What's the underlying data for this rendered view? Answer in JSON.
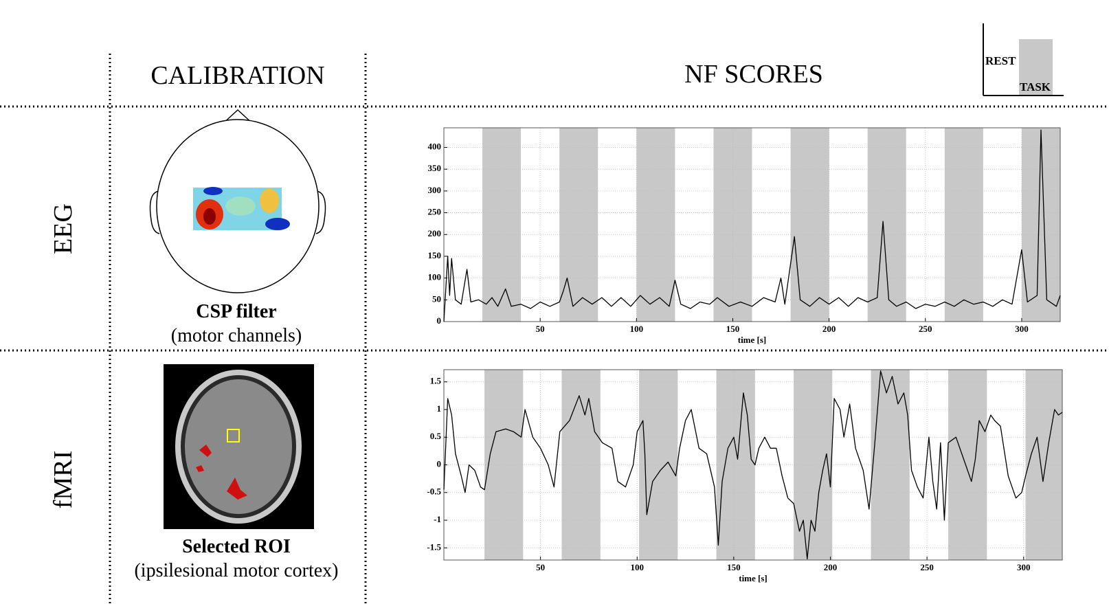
{
  "header": {
    "calibration": "CALIBRATION",
    "nf_scores": "NF SCORES"
  },
  "legend": {
    "rest": "REST",
    "task": "TASK"
  },
  "rows": [
    {
      "label": "EEG",
      "calibration_title": "CSP filter",
      "calibration_subtitle": "(motor channels)"
    },
    {
      "label": "fMRI",
      "calibration_title": "Selected ROI",
      "calibration_subtitle": "(ipsilesional motor cortex)"
    }
  ],
  "chart_data": [
    {
      "type": "line",
      "xlabel": "time [s]",
      "color": "#000000",
      "task_color": "#c8c8c8",
      "grid": true,
      "xlim": [
        0,
        320
      ],
      "ylim": [
        0,
        445
      ],
      "xticks": [
        50,
        100,
        150,
        200,
        250,
        300
      ],
      "yticks": [
        0,
        50,
        100,
        150,
        200,
        250,
        300,
        350,
        400
      ],
      "task_periods": [
        [
          20,
          40
        ],
        [
          60,
          80
        ],
        [
          100,
          120
        ],
        [
          140,
          160
        ],
        [
          180,
          200
        ],
        [
          220,
          240
        ],
        [
          260,
          280
        ],
        [
          300,
          320
        ]
      ],
      "x": [
        0,
        2,
        3,
        4,
        6,
        9,
        12,
        14,
        18,
        22,
        25,
        28,
        32,
        35,
        40,
        45,
        50,
        55,
        60,
        62,
        64,
        67,
        72,
        77,
        82,
        87,
        92,
        97,
        102,
        107,
        112,
        117,
        120,
        123,
        128,
        133,
        138,
        142,
        148,
        154,
        160,
        166,
        172,
        175,
        177,
        182,
        185,
        190,
        195,
        200,
        205,
        210,
        215,
        220,
        225,
        228,
        231,
        235,
        240,
        245,
        250,
        255,
        260,
        265,
        270,
        275,
        280,
        285,
        290,
        295,
        300,
        303,
        308,
        310,
        313,
        318,
        320
      ],
      "values": [
        0,
        150,
        60,
        145,
        50,
        40,
        120,
        45,
        50,
        40,
        55,
        35,
        75,
        35,
        40,
        30,
        45,
        35,
        45,
        70,
        100,
        35,
        55,
        40,
        55,
        35,
        55,
        35,
        60,
        40,
        55,
        35,
        95,
        40,
        30,
        45,
        40,
        55,
        35,
        45,
        35,
        55,
        45,
        100,
        40,
        195,
        50,
        35,
        55,
        40,
        55,
        35,
        55,
        45,
        55,
        230,
        50,
        35,
        45,
        30,
        40,
        35,
        45,
        35,
        50,
        40,
        45,
        35,
        50,
        40,
        165,
        45,
        60,
        440,
        50,
        35,
        60
      ]
    },
    {
      "type": "line",
      "xlabel": "time [s]",
      "color": "#000000",
      "task_color": "#c8c8c8",
      "grid": true,
      "xlim": [
        0,
        320
      ],
      "ylim": [
        -1.72,
        1.72
      ],
      "xticks": [
        50,
        100,
        150,
        200,
        250,
        300
      ],
      "yticks": [
        -1.5,
        -1,
        -0.5,
        0,
        0.5,
        1,
        1.5
      ],
      "task_periods": [
        [
          21,
          41
        ],
        [
          61,
          81
        ],
        [
          101,
          121
        ],
        [
          141,
          161
        ],
        [
          181,
          201
        ],
        [
          221,
          241
        ],
        [
          261,
          281
        ],
        [
          301,
          320
        ]
      ],
      "x": [
        0,
        2,
        4,
        6,
        9,
        11,
        13,
        16,
        19,
        21,
        24,
        27,
        32,
        36,
        40,
        42,
        46,
        50,
        54,
        57,
        60,
        65,
        70,
        73,
        75,
        78,
        82,
        87,
        90,
        94,
        98,
        100,
        103,
        104,
        105,
        108,
        112,
        116,
        120,
        122,
        125,
        128,
        132,
        136,
        140,
        142,
        144,
        147,
        150,
        152,
        155,
        157,
        159,
        161,
        163,
        166,
        169,
        172,
        175,
        178,
        181,
        184,
        186,
        188,
        190,
        192,
        194,
        196,
        198,
        200,
        202,
        205,
        207,
        210,
        213,
        217,
        220,
        223,
        226,
        229,
        232,
        235,
        238,
        240,
        242,
        245,
        248,
        251,
        253,
        255,
        257,
        259,
        261,
        265,
        270,
        273,
        275,
        277,
        280,
        283,
        285,
        288,
        292,
        296,
        299,
        301,
        304,
        307,
        310,
        313,
        316,
        318,
        320
      ],
      "values": [
        -0.45,
        1.2,
        0.9,
        0.2,
        -0.2,
        -0.5,
        0,
        -0.1,
        -0.4,
        -0.45,
        0.2,
        0.6,
        0.65,
        0.6,
        0.5,
        1.0,
        0.5,
        0.3,
        0,
        -0.4,
        0.6,
        0.8,
        1.25,
        0.9,
        1.2,
        0.6,
        0.4,
        0.3,
        -0.3,
        -0.4,
        0,
        0.6,
        0.8,
        0.2,
        -0.9,
        -0.3,
        -0.1,
        0.05,
        -0.2,
        0.3,
        0.8,
        1.0,
        0.3,
        0.2,
        -0.4,
        -1.45,
        -0.3,
        0.3,
        0.5,
        0.1,
        1.3,
        0.9,
        0.1,
        0.0,
        0.3,
        0.5,
        0.3,
        0.3,
        -0.2,
        -0.6,
        -0.7,
        -1.2,
        -1.0,
        -1.7,
        -1.0,
        -1.2,
        -0.5,
        -0.1,
        0.2,
        -0.4,
        1.2,
        1.0,
        0.5,
        1.1,
        0.3,
        -0.1,
        -0.8,
        0.4,
        1.7,
        1.3,
        1.6,
        1.1,
        1.3,
        0.9,
        -0.1,
        -0.4,
        -0.6,
        0.5,
        -0.3,
        -0.8,
        0.4,
        -1.0,
        0.4,
        0.5,
        0.0,
        -0.3,
        0.1,
        0.8,
        0.6,
        0.9,
        0.8,
        0.7,
        -0.2,
        -0.6,
        -0.5,
        -0.2,
        0.2,
        0.5,
        -0.3,
        0.4,
        1.0,
        0.9,
        0.95
      ]
    }
  ]
}
